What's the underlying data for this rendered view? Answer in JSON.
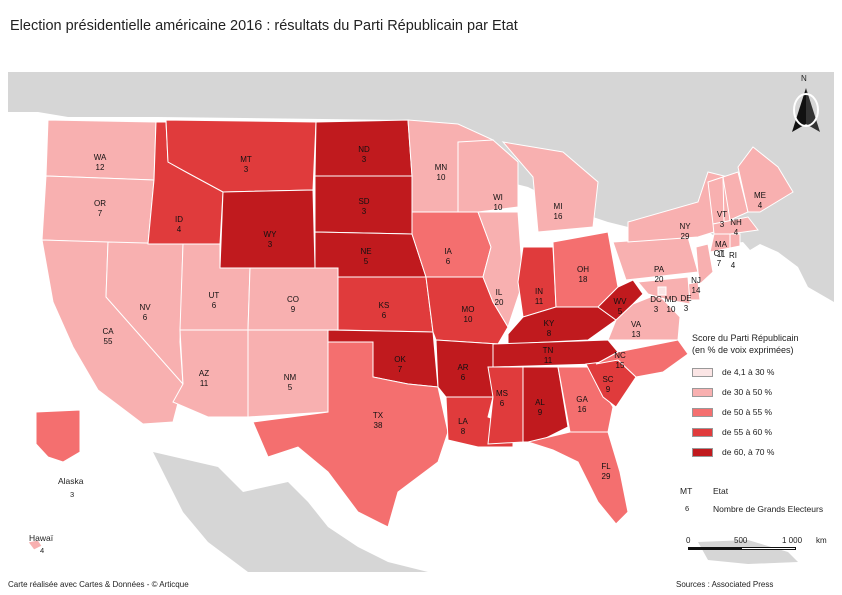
{
  "title": "Election présidentielle américaine 2016 : résultats du Parti Républicain par Etat",
  "colors": {
    "water": "#ffffff",
    "land_other": "#d6d6d6",
    "c1": "#fbe5e5",
    "c2": "#f8b0b0",
    "c3": "#f46f6f",
    "c4": "#e03b3c",
    "c5": "#c01a1e"
  },
  "legend": {
    "title_line1": "Score du Parti Républicain",
    "title_line2": "(en % de voix exprimées)",
    "items": [
      {
        "label": "de 4,1 à 30 %",
        "color": "#fbe5e5"
      },
      {
        "label": "de 30 à 50 %",
        "color": "#f8b0b0"
      },
      {
        "label": "de 50 à 55 %",
        "color": "#f46f6f"
      },
      {
        "label": "de 55 à 60 %",
        "color": "#e03b3c"
      },
      {
        "label": "de 60, à 70 %",
        "color": "#c01a1e"
      }
    ]
  },
  "key": {
    "abbr_example": "MT",
    "abbr_meaning": "Etat",
    "num_example": "6",
    "num_meaning": "Nombre de Grands Electeurs"
  },
  "scale": {
    "zero": "0",
    "mid": "500",
    "max": "1 000",
    "unit": "km"
  },
  "north": "N",
  "insets": {
    "alaska_name": "Alaska",
    "alaska_votes": "3",
    "hawaii_name": "Hawaï",
    "hawaii_votes": "4"
  },
  "footer_left": "Carte réalisée avec Cartes & Données - © Articque",
  "footer_right": "Sources : Associated Press",
  "states": [
    {
      "abbr": "WA",
      "votes": "12",
      "cls": "c2"
    },
    {
      "abbr": "OR",
      "votes": "7",
      "cls": "c2"
    },
    {
      "abbr": "CA",
      "votes": "55",
      "cls": "c2"
    },
    {
      "abbr": "NV",
      "votes": "6",
      "cls": "c2"
    },
    {
      "abbr": "ID",
      "votes": "4",
      "cls": "c4"
    },
    {
      "abbr": "MT",
      "votes": "3",
      "cls": "c4"
    },
    {
      "abbr": "WY",
      "votes": "3",
      "cls": "c5"
    },
    {
      "abbr": "UT",
      "votes": "6",
      "cls": "c2"
    },
    {
      "abbr": "CO",
      "votes": "9",
      "cls": "c2"
    },
    {
      "abbr": "AZ",
      "votes": "11",
      "cls": "c2"
    },
    {
      "abbr": "NM",
      "votes": "5",
      "cls": "c2"
    },
    {
      "abbr": "ND",
      "votes": "3",
      "cls": "c5"
    },
    {
      "abbr": "SD",
      "votes": "3",
      "cls": "c5"
    },
    {
      "abbr": "NE",
      "votes": "5",
      "cls": "c5"
    },
    {
      "abbr": "KS",
      "votes": "6",
      "cls": "c4"
    },
    {
      "abbr": "OK",
      "votes": "7",
      "cls": "c5"
    },
    {
      "abbr": "TX",
      "votes": "38",
      "cls": "c3"
    },
    {
      "abbr": "MN",
      "votes": "10",
      "cls": "c2"
    },
    {
      "abbr": "IA",
      "votes": "6",
      "cls": "c3"
    },
    {
      "abbr": "MO",
      "votes": "10",
      "cls": "c4"
    },
    {
      "abbr": "AR",
      "votes": "6",
      "cls": "c5"
    },
    {
      "abbr": "LA",
      "votes": "8",
      "cls": "c4"
    },
    {
      "abbr": "WI",
      "votes": "10",
      "cls": "c2"
    },
    {
      "abbr": "IL",
      "votes": "20",
      "cls": "c2"
    },
    {
      "abbr": "MI",
      "votes": "16",
      "cls": "c2"
    },
    {
      "abbr": "IN",
      "votes": "11",
      "cls": "c4"
    },
    {
      "abbr": "OH",
      "votes": "18",
      "cls": "c3"
    },
    {
      "abbr": "KY",
      "votes": "8",
      "cls": "c5"
    },
    {
      "abbr": "TN",
      "votes": "11",
      "cls": "c5"
    },
    {
      "abbr": "MS",
      "votes": "6",
      "cls": "c4"
    },
    {
      "abbr": "AL",
      "votes": "9",
      "cls": "c5"
    },
    {
      "abbr": "GA",
      "votes": "16",
      "cls": "c3"
    },
    {
      "abbr": "FL",
      "votes": "29",
      "cls": "c3"
    },
    {
      "abbr": "SC",
      "votes": "9",
      "cls": "c4"
    },
    {
      "abbr": "NC",
      "votes": "15",
      "cls": "c3"
    },
    {
      "abbr": "VA",
      "votes": "13",
      "cls": "c2"
    },
    {
      "abbr": "WV",
      "votes": "5",
      "cls": "c5"
    },
    {
      "abbr": "PA",
      "votes": "20",
      "cls": "c2"
    },
    {
      "abbr": "NY",
      "votes": "29",
      "cls": "c2"
    },
    {
      "abbr": "VT",
      "votes": "3",
      "cls": "c2"
    },
    {
      "abbr": "NH",
      "votes": "4",
      "cls": "c2"
    },
    {
      "abbr": "ME",
      "votes": "4",
      "cls": "c2"
    },
    {
      "abbr": "MA",
      "votes": "11",
      "cls": "c2"
    },
    {
      "abbr": "CT",
      "votes": "7",
      "cls": "c2"
    },
    {
      "abbr": "RI",
      "votes": "4",
      "cls": "c2"
    },
    {
      "abbr": "NJ",
      "votes": "14",
      "cls": "c2"
    },
    {
      "abbr": "DE",
      "votes": "3",
      "cls": "c2"
    },
    {
      "abbr": "MD",
      "votes": "10",
      "cls": "c2"
    },
    {
      "abbr": "DC",
      "votes": "3",
      "cls": "c1"
    },
    {
      "abbr": "AK",
      "votes": "3",
      "cls": "c3"
    },
    {
      "abbr": "HI",
      "votes": "4",
      "cls": "c2"
    }
  ]
}
